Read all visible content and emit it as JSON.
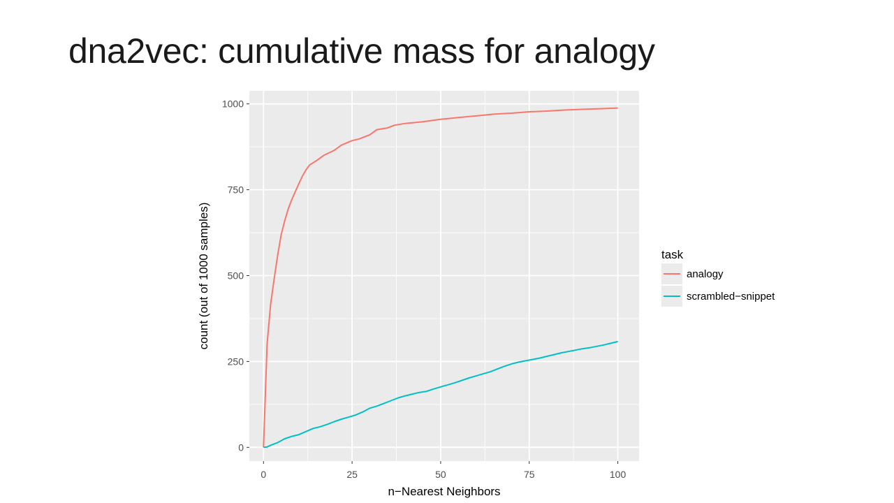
{
  "slide": {
    "title": "dna2vec: cumulative mass for analogy"
  },
  "colors": {
    "panel": "#ebebeb",
    "grid": "#ffffff",
    "analogy": "#f8766d",
    "scrambled": "#00bfc4"
  },
  "chart_data": {
    "type": "line",
    "title": "",
    "xlabel": "n−Nearest Neighbors",
    "ylabel": "count (out of 1000 samples)",
    "xlim": [
      -4,
      106
    ],
    "ylim": [
      -40,
      1038
    ],
    "x_ticks": [
      0,
      25,
      50,
      75,
      100
    ],
    "x_tick_labels": [
      "0",
      "25",
      "50",
      "75",
      "100"
    ],
    "y_ticks": [
      0,
      250,
      500,
      750,
      1000
    ],
    "y_tick_labels": [
      "0",
      "250",
      "500",
      "750",
      "1000"
    ],
    "grid": true,
    "legend": {
      "title": "task",
      "position": "right"
    },
    "series": [
      {
        "name": "analogy",
        "color": "#f8766d",
        "points": [
          [
            0,
            0
          ],
          [
            1,
            300
          ],
          [
            2,
            415
          ],
          [
            3,
            490
          ],
          [
            4,
            560
          ],
          [
            5,
            620
          ],
          [
            6,
            660
          ],
          [
            7,
            695
          ],
          [
            8,
            722
          ],
          [
            9,
            745
          ],
          [
            10,
            768
          ],
          [
            11,
            790
          ],
          [
            12,
            808
          ],
          [
            13,
            822
          ],
          [
            15,
            835
          ],
          [
            17,
            850
          ],
          [
            20,
            865
          ],
          [
            22,
            880
          ],
          [
            25,
            893
          ],
          [
            27,
            898
          ],
          [
            30,
            910
          ],
          [
            32,
            925
          ],
          [
            35,
            930
          ],
          [
            37,
            938
          ],
          [
            40,
            943
          ],
          [
            45,
            948
          ],
          [
            50,
            955
          ],
          [
            55,
            960
          ],
          [
            60,
            965
          ],
          [
            65,
            970
          ],
          [
            70,
            973
          ],
          [
            75,
            977
          ],
          [
            80,
            979
          ],
          [
            85,
            982
          ],
          [
            90,
            984
          ],
          [
            95,
            986
          ],
          [
            100,
            988
          ]
        ]
      },
      {
        "name": "scrambled−snippet",
        "color": "#00bfc4",
        "points": [
          [
            0,
            0
          ],
          [
            1,
            1
          ],
          [
            2,
            6
          ],
          [
            4,
            14
          ],
          [
            6,
            25
          ],
          [
            8,
            32
          ],
          [
            10,
            37
          ],
          [
            12,
            46
          ],
          [
            14,
            55
          ],
          [
            16,
            60
          ],
          [
            18,
            67
          ],
          [
            20,
            75
          ],
          [
            22,
            82
          ],
          [
            24,
            88
          ],
          [
            26,
            94
          ],
          [
            28,
            103
          ],
          [
            30,
            114
          ],
          [
            32,
            120
          ],
          [
            34,
            128
          ],
          [
            36,
            136
          ],
          [
            38,
            144
          ],
          [
            40,
            150
          ],
          [
            42,
            155
          ],
          [
            44,
            160
          ],
          [
            46,
            163
          ],
          [
            48,
            170
          ],
          [
            50,
            176
          ],
          [
            52,
            182
          ],
          [
            54,
            188
          ],
          [
            56,
            195
          ],
          [
            58,
            202
          ],
          [
            60,
            208
          ],
          [
            62,
            214
          ],
          [
            64,
            220
          ],
          [
            66,
            228
          ],
          [
            68,
            236
          ],
          [
            70,
            243
          ],
          [
            72,
            248
          ],
          [
            74,
            252
          ],
          [
            76,
            256
          ],
          [
            78,
            260
          ],
          [
            80,
            265
          ],
          [
            82,
            270
          ],
          [
            84,
            275
          ],
          [
            86,
            279
          ],
          [
            88,
            283
          ],
          [
            90,
            287
          ],
          [
            92,
            290
          ],
          [
            94,
            294
          ],
          [
            96,
            298
          ],
          [
            98,
            303
          ],
          [
            100,
            308
          ]
        ]
      }
    ]
  }
}
